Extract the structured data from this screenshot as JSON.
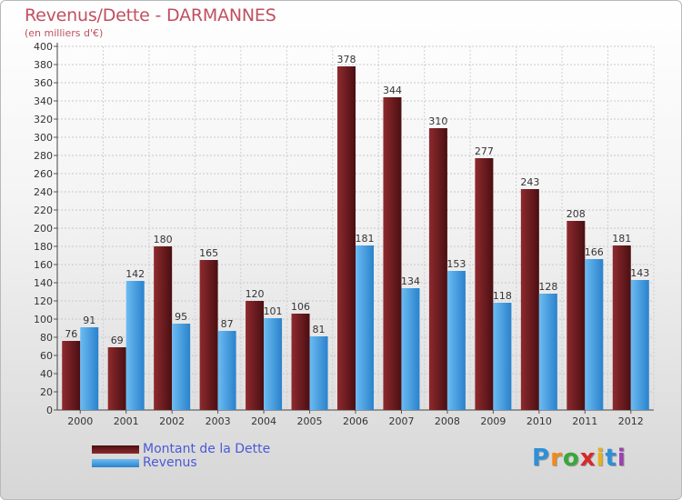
{
  "title": "Revenus/Dette - DARMANNES",
  "subtitle": "(en milliers d'€)",
  "logo": {
    "letters": [
      "P",
      "r",
      "o",
      "x",
      "i",
      "t",
      "i"
    ],
    "colors": [
      "#2f8fd8",
      "#ef8a1c",
      "#38a83a",
      "#d72a2a",
      "#e6b020",
      "#2f8fd8",
      "#9a40b0"
    ]
  },
  "colors": {
    "dette": "#7a1f22",
    "revenus": "#3d9be0",
    "title": "#c05060",
    "legend_text": "#4a5ad6"
  },
  "chart_data": {
    "type": "bar",
    "title": "Revenus/Dette - DARMANNES",
    "subtitle": "(en milliers d'€)",
    "categories": [
      "2000",
      "2001",
      "2002",
      "2003",
      "2004",
      "2005",
      "2006",
      "2007",
      "2008",
      "2009",
      "2010",
      "2011",
      "2012"
    ],
    "series": [
      {
        "name": "Montant de la Dette",
        "values": [
          76,
          69,
          180,
          165,
          120,
          106,
          378,
          344,
          310,
          277,
          243,
          208,
          181
        ]
      },
      {
        "name": "Revenus",
        "values": [
          91,
          142,
          95,
          87,
          101,
          81,
          181,
          134,
          153,
          118,
          128,
          166,
          143
        ]
      }
    ],
    "ylim": [
      0,
      400
    ],
    "ytick_step": 20,
    "grid": true,
    "legend_position": "bottom-left"
  }
}
